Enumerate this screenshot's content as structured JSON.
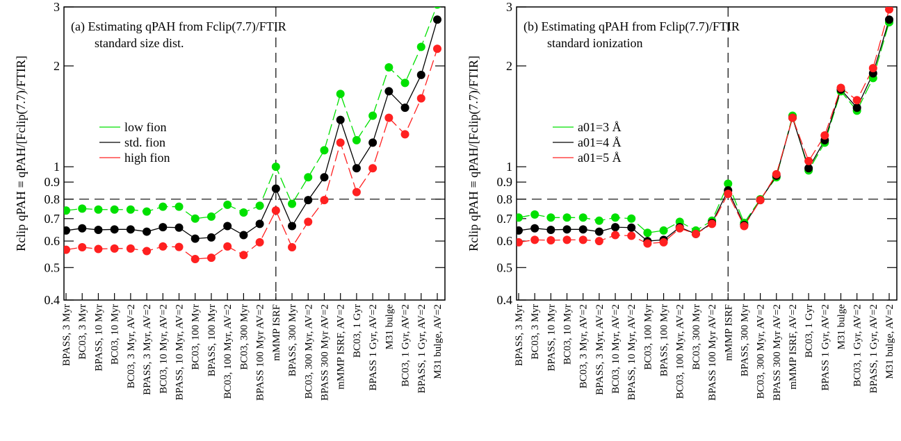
{
  "chart_data": [
    {
      "type": "line",
      "annotation": [
        "(a) Estimating qPAH from Fclip(7.7)/FTIR",
        "standard size dist."
      ],
      "ylabel": "Rclip qPAH ≡ qPAH/[Fclip(7.7)/FTIR]",
      "categories": [
        "BPASS, 3 Myr",
        "BC03, 3 Myr",
        "BPASS, 10 Myr",
        "BC03, 10 Myr",
        "BC03, 3 Myr, AV=2",
        "BPASS, 3 Myr, AV=2",
        "BC03, 10 Myr, AV=2",
        "BPASS, 10 Myr, AV=2",
        "BC03, 100 Myr",
        "BPASS, 100 Myr",
        "BC03, 100 Myr, AV=2",
        "BC03, 300 Myr",
        "BPASS 100 Myr AV=2",
        "mMMP ISRF",
        "BPASS, 300 Myr",
        "BC03, 300 Myr, AV=2",
        "BPASS 300 Myr AV=2",
        "mMMP ISRF, AV=2",
        "BC03, 1 Gyr",
        "BPASS 1 Gyr, AV=2",
        "M31 bulge",
        "BC03, 1 Gyr, AV=2",
        "BPASS, 1 Gyr, AV=2",
        "M31 bulge, AV=2"
      ],
      "series": [
        {
          "name": "low fion",
          "color": "#00e000",
          "dash": true,
          "values": [
            0.74,
            0.75,
            0.745,
            0.745,
            0.745,
            0.735,
            0.76,
            0.76,
            0.7,
            0.71,
            0.77,
            0.73,
            0.765,
            1.0,
            0.775,
            0.93,
            1.12,
            1.65,
            1.2,
            1.42,
            1.98,
            1.78,
            2.28,
            3.05
          ]
        },
        {
          "name": "std. fion",
          "color": "#000000",
          "dash": false,
          "values": [
            0.645,
            0.655,
            0.648,
            0.65,
            0.65,
            0.64,
            0.66,
            0.658,
            0.61,
            0.615,
            0.665,
            0.625,
            0.675,
            0.86,
            0.665,
            0.795,
            0.93,
            1.38,
            0.99,
            1.18,
            1.68,
            1.5,
            1.88,
            2.75
          ]
        },
        {
          "name": "high fion",
          "color": "#ff2020",
          "dash": true,
          "values": [
            0.565,
            0.575,
            0.568,
            0.57,
            0.57,
            0.56,
            0.578,
            0.576,
            0.53,
            0.535,
            0.578,
            0.545,
            0.595,
            0.74,
            0.575,
            0.685,
            0.795,
            1.18,
            0.84,
            0.99,
            1.4,
            1.25,
            1.6,
            2.25
          ]
        }
      ],
      "yscale": "log",
      "ylim": [
        0.4,
        3
      ],
      "yticks": [
        0.4,
        0.5,
        0.6,
        0.7,
        0.8,
        0.9,
        1,
        2,
        3
      ],
      "hline": 0.8,
      "vline_category": "mMMP ISRF"
    },
    {
      "type": "line",
      "annotation": [
        "(b) Estimating qPAH from Fclip(7.7)/FTIR",
        "standard ionization"
      ],
      "ylabel": "Rclip qPAH ≡ qPAH/[Fclip(7.7)/FTIR]",
      "categories": [
        "BPASS, 3 Myr",
        "BC03, 3 Myr",
        "BPASS, 10 Myr",
        "BC03, 10 Myr",
        "BC03, 3 Myr, AV=2",
        "BPASS, 3 Myr, AV=2",
        "BC03, 10 Myr, AV=2",
        "BPASS, 10 Myr, AV=2",
        "BC03, 100 Myr",
        "BPASS, 100 Myr",
        "BC03, 100 Myr, AV=2",
        "BC03, 300 Myr",
        "BPASS 100 Myr AV=2",
        "mMMP ISRF",
        "BPASS, 300 Myr",
        "BC03, 300 Myr, AV=2",
        "BPASS 300 Myr AV=2",
        "mMMP ISRF, AV=2",
        "BC03, 1 Gyr",
        "BPASS 1 Gyr, AV=2",
        "M31 bulge",
        "BC03, 1 Gyr, AV=2",
        "BPASS, 1 Gyr, AV=2",
        "M31 bulge, AV=2"
      ],
      "series": [
        {
          "name": "a01=3 Å",
          "color": "#00e000",
          "dash": true,
          "values": [
            0.705,
            0.72,
            0.705,
            0.705,
            0.705,
            0.69,
            0.705,
            0.7,
            0.635,
            0.645,
            0.685,
            0.645,
            0.69,
            0.89,
            0.68,
            0.8,
            0.93,
            1.42,
            0.975,
            1.18,
            1.68,
            1.47,
            1.84,
            2.7
          ]
        },
        {
          "name": "a01=4 Å",
          "color": "#000000",
          "dash": false,
          "values": [
            0.645,
            0.655,
            0.648,
            0.65,
            0.65,
            0.64,
            0.66,
            0.658,
            0.6,
            0.605,
            0.66,
            0.63,
            0.68,
            0.85,
            0.67,
            0.795,
            0.94,
            1.4,
            0.99,
            1.2,
            1.7,
            1.5,
            1.9,
            2.75
          ]
        },
        {
          "name": "a01=5 Å",
          "color": "#ff2020",
          "dash": true,
          "values": [
            0.595,
            0.605,
            0.603,
            0.605,
            0.605,
            0.6,
            0.625,
            0.622,
            0.59,
            0.595,
            0.655,
            0.63,
            0.675,
            0.83,
            0.665,
            0.795,
            0.95,
            1.4,
            1.04,
            1.24,
            1.72,
            1.58,
            1.97,
            2.95
          ]
        }
      ],
      "yscale": "log",
      "ylim": [
        0.4,
        3
      ],
      "yticks": [
        0.4,
        0.5,
        0.6,
        0.7,
        0.8,
        0.9,
        1,
        2,
        3
      ],
      "hline": 0.8,
      "vline_category": "mMMP ISRF"
    }
  ]
}
